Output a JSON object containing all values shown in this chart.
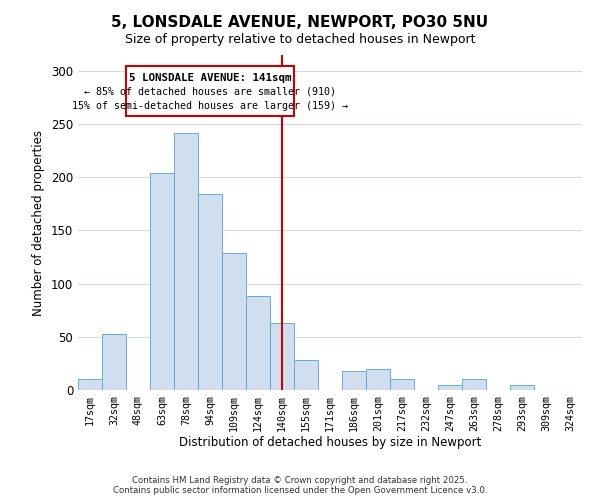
{
  "title": "5, LONSDALE AVENUE, NEWPORT, PO30 5NU",
  "subtitle": "Size of property relative to detached houses in Newport",
  "xlabel": "Distribution of detached houses by size in Newport",
  "ylabel": "Number of detached properties",
  "bar_color": "#cfdff0",
  "bar_edge_color": "#6aaad4",
  "bin_labels": [
    "17sqm",
    "32sqm",
    "48sqm",
    "63sqm",
    "78sqm",
    "94sqm",
    "109sqm",
    "124sqm",
    "140sqm",
    "155sqm",
    "171sqm",
    "186sqm",
    "201sqm",
    "217sqm",
    "232sqm",
    "247sqm",
    "263sqm",
    "278sqm",
    "293sqm",
    "309sqm",
    "324sqm"
  ],
  "bin_values": [
    10,
    53,
    0,
    204,
    242,
    184,
    129,
    88,
    63,
    28,
    0,
    18,
    20,
    10,
    0,
    5,
    10,
    0,
    5,
    0,
    0
  ],
  "ylim": [
    0,
    315
  ],
  "yticks": [
    0,
    50,
    100,
    150,
    200,
    250,
    300
  ],
  "vline_bin": 8,
  "annotation_title": "5 LONSDALE AVENUE: 141sqm",
  "annotation_line1": "← 85% of detached houses are smaller (910)",
  "annotation_line2": "15% of semi-detached houses are larger (159) →",
  "annotation_box_color": "#ffffff",
  "annotation_box_edge": "#cc0000",
  "vline_color": "#cc0000",
  "footer_line1": "Contains HM Land Registry data © Crown copyright and database right 2025.",
  "footer_line2": "Contains public sector information licensed under the Open Government Licence v3.0.",
  "background_color": "#ffffff",
  "grid_color": "#d0d8e8"
}
